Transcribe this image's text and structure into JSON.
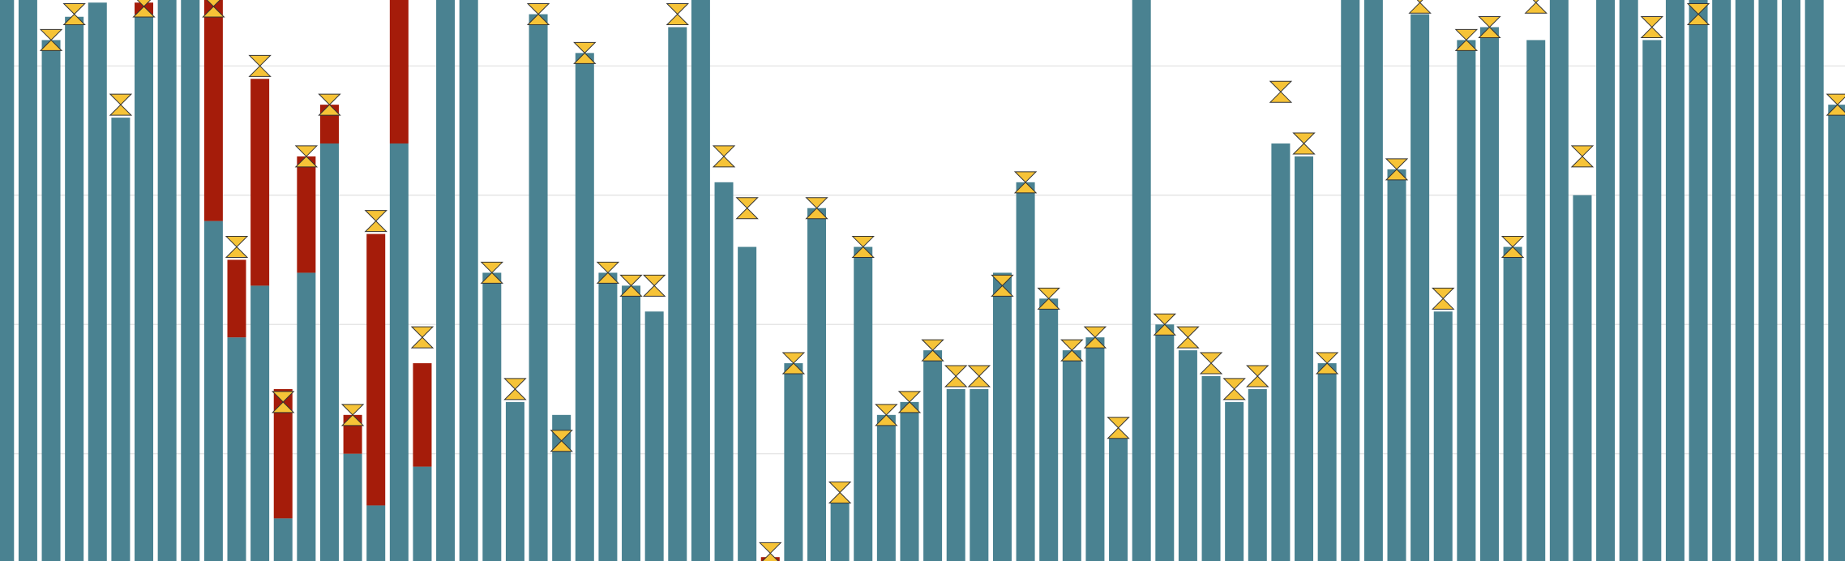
{
  "chart_data": {
    "type": "bar",
    "stacked": true,
    "grid": true,
    "ylim": [
      0.17,
      4.51
    ],
    "yticks": [
      1,
      2,
      3,
      4
    ],
    "categories": [
      null,
      null,
      null,
      null,
      null,
      null,
      null,
      null,
      null,
      null,
      null,
      null,
      null,
      null,
      null,
      null,
      null,
      null,
      null,
      null,
      null,
      null,
      null,
      null,
      null,
      null,
      null,
      null,
      null,
      null,
      null,
      null,
      null,
      null,
      null,
      null,
      null,
      null,
      null,
      null,
      null,
      null,
      null,
      null,
      null,
      null,
      null,
      null,
      null,
      null,
      null,
      null,
      null,
      null,
      null,
      null,
      null,
      null,
      null,
      null,
      null,
      null,
      null,
      null,
      null,
      null,
      null,
      null,
      null,
      null,
      null,
      null,
      null,
      null,
      null,
      null,
      null,
      null,
      null,
      null
    ],
    "series": [
      {
        "color": "#4a8291",
        "values": [
          4.51,
          4.51,
          4.2,
          4.38,
          4.49,
          3.6,
          4.4,
          4.51,
          4.51,
          2.8,
          1.9,
          2.3,
          0.5,
          2.4,
          3.4,
          1.0,
          0.6,
          3.4,
          0.9,
          4.51,
          4.51,
          2.4,
          1.4,
          4.4,
          1.3,
          4.1,
          2.4,
          2.3,
          2.1,
          4.3,
          4.51,
          3.1,
          2.6,
          0.17,
          1.7,
          2.9,
          0.63,
          2.6,
          1.3,
          1.4,
          1.8,
          1.5,
          1.5,
          2.4,
          3.1,
          2.2,
          1.8,
          1.9,
          1.13,
          4.51,
          2.0,
          1.8,
          1.6,
          1.4,
          1.5,
          3.4,
          3.3,
          1.7,
          4.51,
          4.51,
          3.2,
          4.4,
          2.1,
          4.2,
          4.3,
          2.6,
          4.2,
          4.51,
          3.0,
          4.51,
          4.51,
          4.2,
          4.51,
          4.51,
          4.51,
          4.51,
          4.51,
          4.51,
          4.51,
          3.7
        ]
      },
      {
        "color": "#a51c0a",
        "values": [
          null,
          null,
          null,
          null,
          null,
          null,
          0.09,
          null,
          null,
          1.71,
          0.6,
          1.6,
          1.0,
          0.9,
          0.3,
          0.3,
          2.1,
          1.11,
          0.8,
          null,
          null,
          null,
          null,
          null,
          null,
          null,
          null,
          null,
          null,
          null,
          null,
          null,
          null,
          0.03,
          null,
          null,
          null,
          null,
          null,
          null,
          null,
          null,
          null,
          null,
          null,
          null,
          null,
          null,
          null,
          null,
          null,
          null,
          null,
          null,
          null,
          null,
          null,
          null,
          null,
          null,
          null,
          null,
          null,
          null,
          null,
          null,
          null,
          null,
          null,
          null,
          null,
          null,
          null,
          null,
          null,
          null,
          null,
          null,
          null,
          null
        ]
      }
    ],
    "markers": {
      "color": "#f6c337",
      "values": [
        null,
        null,
        4.2,
        4.4,
        null,
        3.7,
        4.46,
        null,
        null,
        4.46,
        2.6,
        4.0,
        1.4,
        3.3,
        3.7,
        1.3,
        2.8,
        null,
        1.9,
        null,
        null,
        2.4,
        1.5,
        4.4,
        1.1,
        4.1,
        2.4,
        2.3,
        2.3,
        4.4,
        null,
        3.3,
        2.9,
        0.23,
        1.7,
        2.9,
        0.7,
        2.6,
        1.3,
        1.4,
        1.8,
        1.6,
        1.6,
        2.3,
        3.1,
        2.2,
        1.8,
        1.9,
        1.2,
        null,
        2.0,
        1.9,
        1.7,
        1.5,
        1.6,
        3.8,
        3.4,
        1.7,
        null,
        null,
        3.2,
        4.49,
        2.2,
        4.2,
        4.3,
        2.6,
        4.49,
        null,
        3.3,
        null,
        null,
        4.3,
        null,
        4.4,
        null,
        null,
        null,
        null,
        null,
        3.7
      ]
    }
  }
}
